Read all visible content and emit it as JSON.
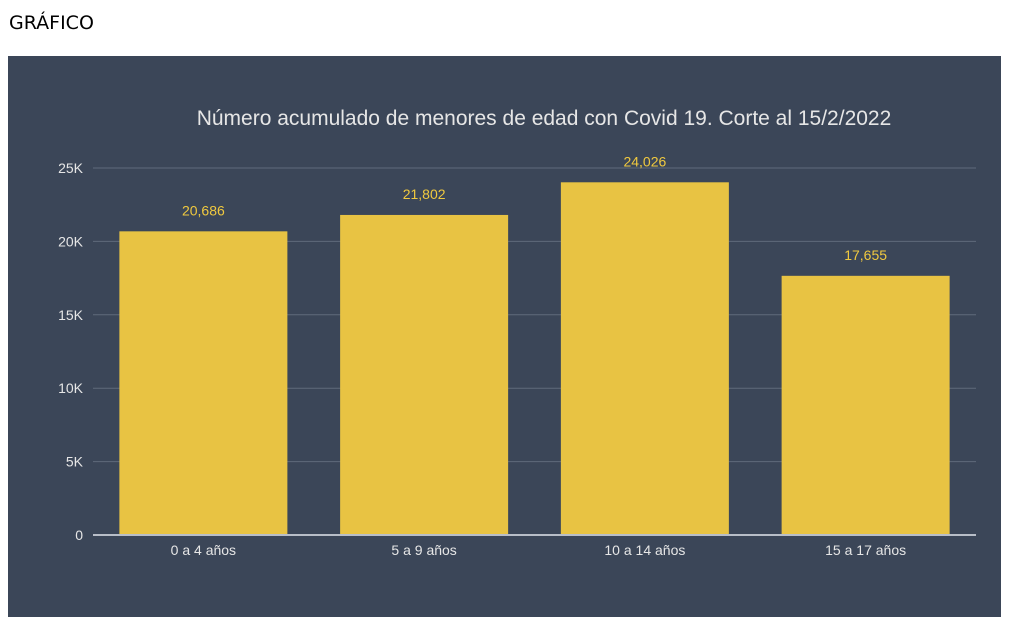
{
  "page": {
    "heading": "GRÁFICO"
  },
  "colors": {
    "panel_background": "#3b4658",
    "bar": "#e8c343",
    "data_label": "#f0c93f",
    "gridline": "#5f6a7b",
    "axis_line": "#b8bec8",
    "text": "#e6e6e6"
  },
  "chart_data": {
    "type": "bar",
    "title": "Número acumulado de menores de edad con Covid 19. Corte al 15/2/2022",
    "xlabel": "",
    "ylabel": "",
    "categories": [
      "0 a 4 años",
      "5 a 9 años",
      "10 a 14 años",
      "15 a 17 años"
    ],
    "values": [
      20686,
      21802,
      24026,
      17655
    ],
    "data_labels": [
      "20,686",
      "21,802",
      "24,026",
      "17,655"
    ],
    "ylim": [
      0,
      25000
    ],
    "yticks": [
      0,
      5000,
      10000,
      15000,
      20000,
      25000
    ],
    "ytick_labels": [
      "0",
      "5K",
      "10K",
      "15K",
      "20K",
      "25K"
    ],
    "grid": true,
    "legend": "none"
  }
}
